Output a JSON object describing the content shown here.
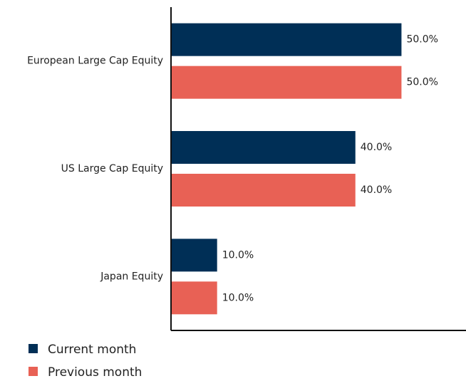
{
  "chart_data": {
    "type": "bar",
    "orientation": "horizontal",
    "categories": [
      "European Large Cap Equity",
      "US Large Cap Equity",
      "Japan Equity"
    ],
    "series": [
      {
        "name": "Current month",
        "color": "#002f56",
        "values": [
          50,
          40,
          10
        ],
        "value_labels": [
          "50.0%",
          "40.0%",
          "10.0%"
        ]
      },
      {
        "name": "Previous month",
        "color": "#e86155",
        "values": [
          50,
          40,
          10
        ],
        "value_labels": [
          "50.0%",
          "40.0%",
          "10.0%"
        ]
      }
    ],
    "xlim": [
      0,
      64
    ],
    "legend": "bottom-left"
  }
}
